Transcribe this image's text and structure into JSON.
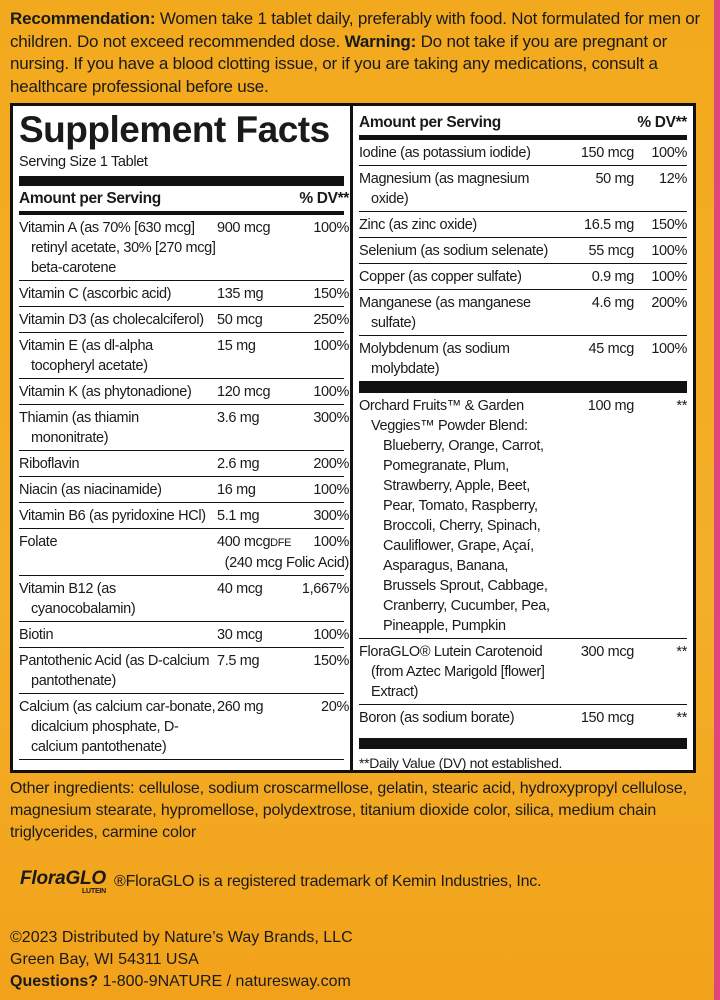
{
  "recommendation": {
    "label": "Recommendation:",
    "text": "Women take 1 tablet daily, preferably with food.  Not formulated for men or children. Do not exceed recommended dose.",
    "warning_label": "Warning:",
    "warning_text": "Do not take if you are pregnant or nursing. If you have a blood clotting issue, or if you are taking any medications, consult a healthcare professional before use."
  },
  "supplement_facts": {
    "title": "Supplement Facts",
    "serving_size": "Serving Size 1 Tablet",
    "left_header": {
      "amount": "Amount per Serving",
      "dv": "% DV**"
    },
    "left_rows": [
      {
        "name": "Vitamin A (as 70% [630 mcg] retinyl acetate, 30% [270 mcg] beta-carotene",
        "amount": "900 mcg",
        "dv": "100%"
      },
      {
        "name": "Vitamin C (ascorbic acid)",
        "amount": "135 mg",
        "dv": "150%"
      },
      {
        "name": "Vitamin D3 (as cholecalciferol)",
        "amount": "50 mcg",
        "dv": "250%"
      },
      {
        "name": "Vitamin E (as dl-alpha tocopheryl acetate)",
        "amount": "15 mg",
        "dv": "100%"
      },
      {
        "name": "Vitamin K (as phytonadione)",
        "amount": "120 mcg",
        "dv": "100%"
      },
      {
        "name": "Thiamin (as thiamin mononitrate)",
        "amount": "3.6 mg",
        "dv": "300%"
      },
      {
        "name": "Riboflavin",
        "amount": "2.6 mg",
        "dv": "200%"
      },
      {
        "name": "Niacin (as niacinamide)",
        "amount": "16 mg",
        "dv": "100%"
      },
      {
        "name": "Vitamin B6 (as pyridoxine HCl)",
        "amount": "5.1 mg",
        "dv": "300%"
      },
      {
        "name": "Folate",
        "amount": "400 mcg",
        "amount_unit": "DFE",
        "dv": "100%",
        "note": "(240 mcg Folic Acid)"
      },
      {
        "name": "Vitamin B12 (as cyanocobalamin)",
        "amount": "40 mcg",
        "dv": "1,667%"
      },
      {
        "name": "Biotin",
        "amount": "30 mcg",
        "dv": "100%"
      },
      {
        "name": "Pantothenic Acid (as D-calcium pantothenate)",
        "amount": "7.5 mg",
        "dv": "150%"
      },
      {
        "name": "Calcium (as calcium car-bonate, dicalcium phosphate, D-calcium pantothenate)",
        "amount": "260 mg",
        "dv": "20%"
      }
    ],
    "right_header": {
      "amount": "Amount per Serving",
      "dv": "% DV**"
    },
    "right_rows": [
      {
        "name": "Iodine (as potassium iodide)",
        "amount": "150 mcg",
        "dv": "100%"
      },
      {
        "name": "Magnesium (as magnesium oxide)",
        "amount": "50 mg",
        "dv": "12%"
      },
      {
        "name": "Zinc (as zinc oxide)",
        "amount": "16.5 mg",
        "dv": "150%"
      },
      {
        "name": "Selenium (as sodium selenate)",
        "amount": "55 mcg",
        "dv": "100%"
      },
      {
        "name": "Copper (as copper sulfate)",
        "amount": "0.9 mg",
        "dv": "100%"
      },
      {
        "name": "Manganese (as manganese sulfate)",
        "amount": "4.6 mg",
        "dv": "200%"
      },
      {
        "name": "Molybdenum (as sodium molybdate)",
        "amount": "45 mcg",
        "dv": "100%"
      }
    ],
    "blend_rows": [
      {
        "name": "Orchard Fruits™ & Garden Veggies™ Powder Blend:",
        "ingredients": "Blueberry, Orange, Carrot, Pomegranate, Plum, Strawberry, Apple, Beet, Pear, Tomato, Raspberry, Broccoli, Cherry, Spinach, Cauliflower, Grape, Açaí, Asparagus, Banana, Brussels Sprout, Cabbage, Cranberry, Cucumber, Pea, Pineapple, Pumpkin",
        "amount": "100 mg",
        "dv": "**"
      },
      {
        "name": "FloraGLO® Lutein Carotenoid (from Aztec Marigold [flower] Extract)",
        "amount": "300 mcg",
        "dv": "**"
      },
      {
        "name": "Boron (as sodium borate)",
        "amount": "150 mcg",
        "dv": "**"
      }
    ],
    "footnote": "**Daily Value (DV) not established."
  },
  "other_ingredients": "Other ingredients: cellulose, sodium croscarmellose, gelatin, stearic acid, hydroxypropyl cellulose, magnesium stearate, hypromellose, polydextrose, titanium dioxide color, silica, medium chain triglycerides, carmine color",
  "trademark": {
    "logo": "FloraGLO",
    "logo_sub": "LUTEIN",
    "text": "®FloraGLO is a registered trademark of Kemin Industries, Inc."
  },
  "distributor": {
    "copyright": "©2023 Distributed by Nature’s Way Brands, LLC",
    "address": "Green Bay, WI 54311 USA",
    "questions_label": "Questions?",
    "questions_text": "1-800-9NATURE / naturesway.com"
  }
}
